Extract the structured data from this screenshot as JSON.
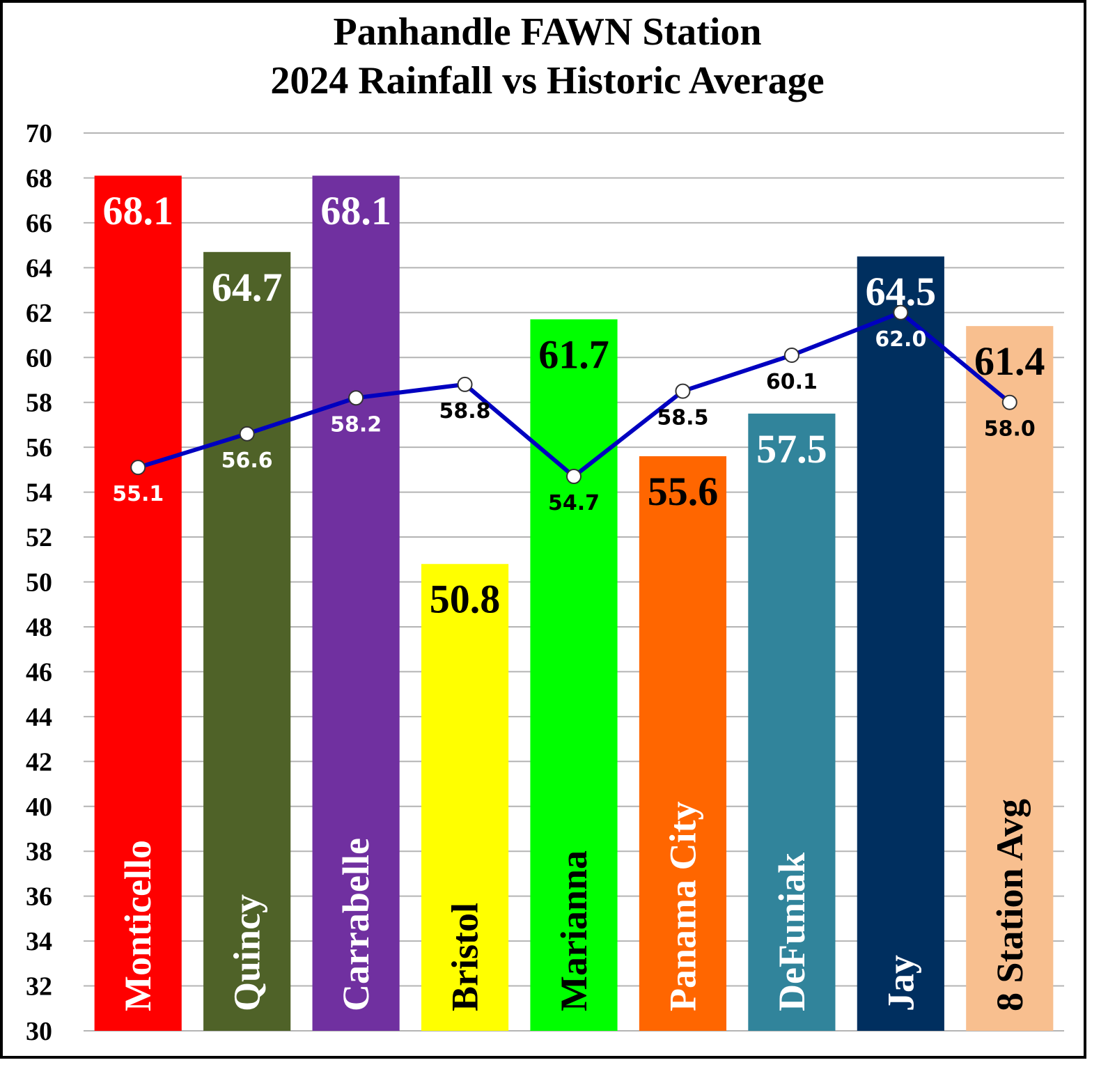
{
  "chart_data": {
    "type": "bar",
    "title": "Panhandle FAWN Station",
    "subtitle": "2024 Rainfall vs Historic Average",
    "categories": [
      "Monticello",
      "Quincy",
      "Carrabelle",
      "Bristol",
      "Marianna",
      "Panama City",
      "DeFuniak",
      "Jay",
      "8 Station Avg"
    ],
    "series": [
      {
        "type": "bar",
        "colors": [
          "#ff0000",
          "#4f6228",
          "#7030a0",
          "#ffff00",
          "#00ff00",
          "#ff6600",
          "#31849b",
          "#002f5f",
          "#f8bf8f"
        ],
        "label_colors": [
          "#ffffff",
          "#ffffff",
          "#ffffff",
          "#000000",
          "#000000",
          "#000000",
          "#ffffff",
          "#ffffff",
          "#000000"
        ],
        "category_label_colors": [
          "#ffffff",
          "#ffffff",
          "#ffffff",
          "#000000",
          "#000000",
          "#ffffff",
          "#ffffff",
          "#ffffff",
          "#000000"
        ],
        "values": [
          68.1,
          64.7,
          68.1,
          50.8,
          61.7,
          55.6,
          57.5,
          64.5,
          61.4
        ]
      },
      {
        "type": "line",
        "color": "#0000c0",
        "label_colors": [
          "#ffffff",
          "#ffffff",
          "#ffffff",
          "#000000",
          "#000000",
          "#000000",
          "#000000",
          "#ffffff",
          "#000000"
        ],
        "values": [
          55.1,
          56.6,
          58.2,
          58.8,
          54.7,
          58.5,
          60.1,
          62.0,
          58.0
        ],
        "value_labels": [
          "55.1",
          "56.6",
          "58.2",
          "58.8",
          "54.7",
          "58.5",
          "60.1",
          "62.0",
          "58.0"
        ]
      }
    ],
    "ylim": [
      30,
      70
    ],
    "yticks": [
      30,
      32,
      34,
      36,
      38,
      40,
      42,
      44,
      46,
      48,
      50,
      52,
      54,
      56,
      58,
      60,
      62,
      64,
      66,
      68,
      70
    ],
    "grid": true
  }
}
